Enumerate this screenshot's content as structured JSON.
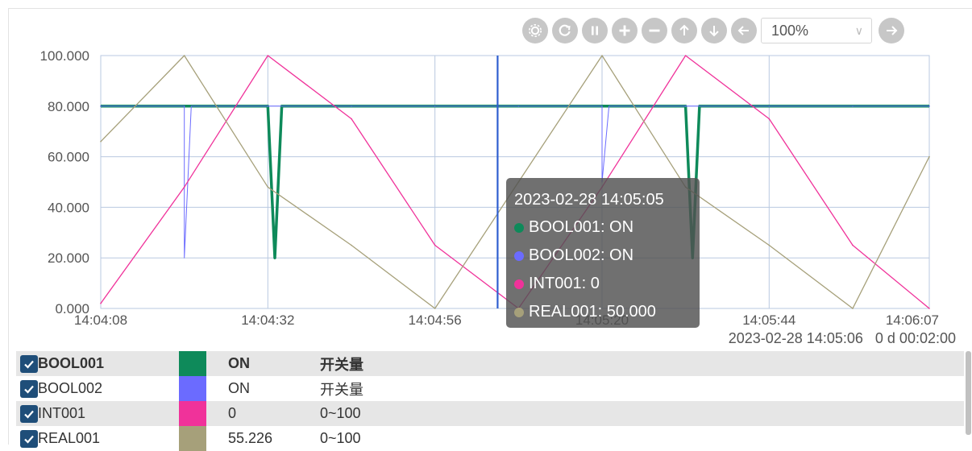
{
  "toolbar": {
    "buttons": [
      "gear-icon",
      "refresh-icon",
      "pause-icon",
      "zoom-in-icon",
      "zoom-out-icon",
      "arrow-up-icon",
      "arrow-down-icon",
      "arrow-left-icon"
    ],
    "zoom_value": "100%",
    "next_button": "arrow-right-icon"
  },
  "chart_data": {
    "type": "line",
    "x_tick_labels": [
      "14:04:08",
      "14:04:32",
      "14:04:56",
      "14:05:20",
      "14:05:44",
      "14:06:07"
    ],
    "y_tick_labels": [
      "0.000",
      "20.000",
      "40.000",
      "60.000",
      "80.000",
      "100.000"
    ],
    "ylim": [
      0,
      100
    ],
    "grid": true,
    "x": [
      "14:04:08",
      "14:04:20",
      "14:04:32",
      "14:04:44",
      "14:04:56",
      "14:05:08",
      "14:05:20",
      "14:05:32",
      "14:05:44",
      "14:05:56",
      "14:06:07"
    ],
    "series": [
      {
        "name": "BOOL001",
        "color": "#0e8a5a",
        "values": [
          80,
          80,
          80,
          80,
          80,
          80,
          80,
          80,
          80,
          80,
          80
        ],
        "dips": [
          {
            "at": "14:04:33",
            "value": 20
          },
          {
            "at": "14:05:33",
            "value": 20
          }
        ]
      },
      {
        "name": "BOOL002",
        "color": "#6b6bff",
        "values": [
          80,
          80,
          80,
          80,
          80,
          80,
          80,
          80,
          80,
          80,
          80
        ],
        "dips": [
          {
            "at": "14:04:20",
            "value": 20
          },
          {
            "at": "14:05:20",
            "value": 50
          }
        ]
      },
      {
        "name": "INT001",
        "color": "#f0329a",
        "values": [
          2,
          48,
          100,
          75,
          25,
          0,
          48,
          100,
          75,
          25,
          0
        ]
      },
      {
        "name": "REAL001",
        "color": "#a6a07a",
        "values": [
          66,
          100,
          48,
          25,
          0,
          50,
          100,
          48,
          25,
          0,
          60
        ]
      }
    ],
    "cursor": "14:05:05"
  },
  "tooltip": {
    "time": "2023-02-28 14:05:05",
    "rows": [
      {
        "label": "BOOL001: ON",
        "color": "#0e8a5a"
      },
      {
        "label": "BOOL002: ON",
        "color": "#6b6bff"
      },
      {
        "label": "INT001: 0",
        "color": "#f0329a"
      },
      {
        "label": "REAL001: 50.000",
        "color": "#a6a07a"
      }
    ]
  },
  "status": {
    "timestamp": "2023-02-28 14:05:06",
    "duration": "0 d 00:02:00"
  },
  "legend": [
    {
      "name": "BOOL001",
      "color": "#0e8a5a",
      "value": "ON",
      "type": "开关量"
    },
    {
      "name": "BOOL002",
      "color": "#6b6bff",
      "value": "ON",
      "type": "开关量"
    },
    {
      "name": "INT001",
      "color": "#f0329a",
      "value": "0",
      "type": "0~100"
    },
    {
      "name": "REAL001",
      "color": "#a6a07a",
      "value": "55.226",
      "type": "0~100"
    }
  ]
}
